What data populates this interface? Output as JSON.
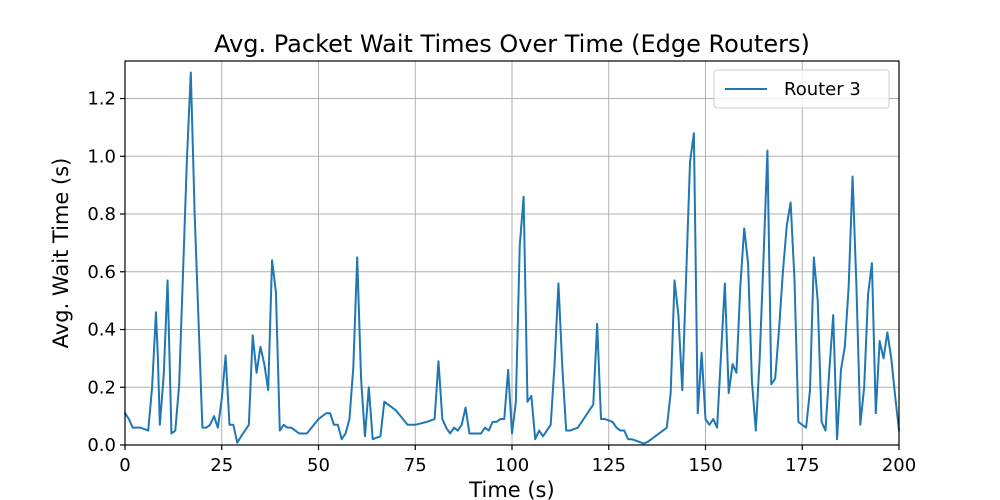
{
  "chart_data": {
    "type": "line",
    "title": "Avg. Packet Wait Times Over Time (Edge Routers)",
    "xlabel": "Time (s)",
    "ylabel": "Avg. Wait Time (s)",
    "xlim": [
      0,
      200
    ],
    "ylim": [
      0,
      1.33
    ],
    "xticks": [
      0,
      25,
      50,
      75,
      100,
      125,
      150,
      175,
      200
    ],
    "yticks": [
      0.0,
      0.2,
      0.4,
      0.6,
      0.8,
      1.0,
      1.2
    ],
    "xtick_labels": [
      "0",
      "25",
      "50",
      "75",
      "100",
      "125",
      "150",
      "175",
      "200"
    ],
    "ytick_labels": [
      "0.0",
      "0.2",
      "0.4",
      "0.6",
      "0.8",
      "1.0",
      "1.2"
    ],
    "grid": true,
    "legend_position": "top-right",
    "series": [
      {
        "name": "Router 3",
        "color": "#1f77b4",
        "x": [
          0,
          1,
          2,
          3,
          4,
          5,
          6,
          7,
          7.5,
          8,
          8.5,
          9,
          10,
          11,
          12,
          13,
          14,
          16,
          17,
          18,
          20,
          21,
          22,
          23,
          24,
          25,
          26,
          27,
          28,
          29,
          30,
          32,
          33,
          34,
          35,
          36,
          37,
          38,
          39,
          40,
          41,
          42,
          43,
          45,
          47,
          50,
          52,
          53,
          54,
          55,
          56,
          57,
          58,
          59,
          60,
          61,
          62,
          63,
          64,
          66,
          67,
          70,
          73,
          75,
          78,
          80,
          81,
          82,
          83,
          84,
          85,
          86,
          87,
          88,
          89,
          90,
          91,
          92,
          93,
          94,
          95,
          96,
          97,
          98,
          99,
          100,
          101,
          102,
          103,
          104,
          105,
          106,
          107,
          108,
          109,
          110,
          111,
          112,
          113,
          114,
          115,
          117,
          119,
          121,
          122,
          123,
          124,
          126,
          127,
          128,
          129,
          130,
          131,
          133,
          134,
          135,
          137,
          140,
          141,
          142,
          143,
          144,
          146,
          147,
          148,
          149,
          150,
          151,
          152,
          153,
          155,
          156,
          157,
          158,
          159,
          160,
          161,
          162,
          163,
          164,
          165,
          166,
          167,
          168,
          169,
          170,
          171,
          172,
          173,
          174,
          175,
          176,
          177,
          178,
          179,
          180,
          181,
          182,
          183,
          184,
          185,
          186,
          187,
          188,
          189,
          190,
          191,
          192,
          193,
          194,
          195,
          196,
          197,
          198,
          199,
          200
        ],
        "values": [
          0.11,
          0.09,
          0.06,
          0.06,
          0.06,
          0.055,
          0.05,
          0.2,
          0.33,
          0.46,
          0.3,
          0.07,
          0.24,
          0.57,
          0.04,
          0.05,
          0.21,
          0.99,
          1.29,
          0.8,
          0.06,
          0.06,
          0.07,
          0.1,
          0.06,
          0.16,
          0.31,
          0.07,
          0.07,
          0.008,
          0.03,
          0.07,
          0.38,
          0.25,
          0.34,
          0.28,
          0.19,
          0.64,
          0.53,
          0.05,
          0.07,
          0.06,
          0.06,
          0.04,
          0.04,
          0.09,
          0.11,
          0.11,
          0.07,
          0.07,
          0.02,
          0.04,
          0.09,
          0.27,
          0.65,
          0.23,
          0.03,
          0.2,
          0.02,
          0.03,
          0.15,
          0.12,
          0.07,
          0.07,
          0.08,
          0.09,
          0.29,
          0.09,
          0.06,
          0.04,
          0.06,
          0.05,
          0.07,
          0.13,
          0.04,
          0.04,
          0.04,
          0.04,
          0.06,
          0.05,
          0.08,
          0.08,
          0.09,
          0.09,
          0.26,
          0.04,
          0.15,
          0.69,
          0.86,
          0.15,
          0.17,
          0.02,
          0.05,
          0.03,
          0.05,
          0.07,
          0.28,
          0.56,
          0.27,
          0.05,
          0.05,
          0.06,
          0.1,
          0.14,
          0.42,
          0.09,
          0.09,
          0.08,
          0.06,
          0.05,
          0.05,
          0.02,
          0.02,
          0.01,
          0.005,
          0.01,
          0.03,
          0.06,
          0.18,
          0.57,
          0.45,
          0.19,
          0.98,
          1.08,
          0.11,
          0.32,
          0.09,
          0.07,
          0.09,
          0.06,
          0.56,
          0.18,
          0.28,
          0.25,
          0.55,
          0.75,
          0.63,
          0.22,
          0.05,
          0.3,
          0.65,
          1.02,
          0.21,
          0.23,
          0.4,
          0.6,
          0.76,
          0.84,
          0.57,
          0.08,
          0.07,
          0.06,
          0.19,
          0.65,
          0.5,
          0.08,
          0.05,
          0.26,
          0.45,
          0.02,
          0.26,
          0.34,
          0.55,
          0.93,
          0.55,
          0.07,
          0.2,
          0.52,
          0.63,
          0.11,
          0.36,
          0.3,
          0.39,
          0.3,
          0.17,
          0.05
        ]
      }
    ]
  }
}
